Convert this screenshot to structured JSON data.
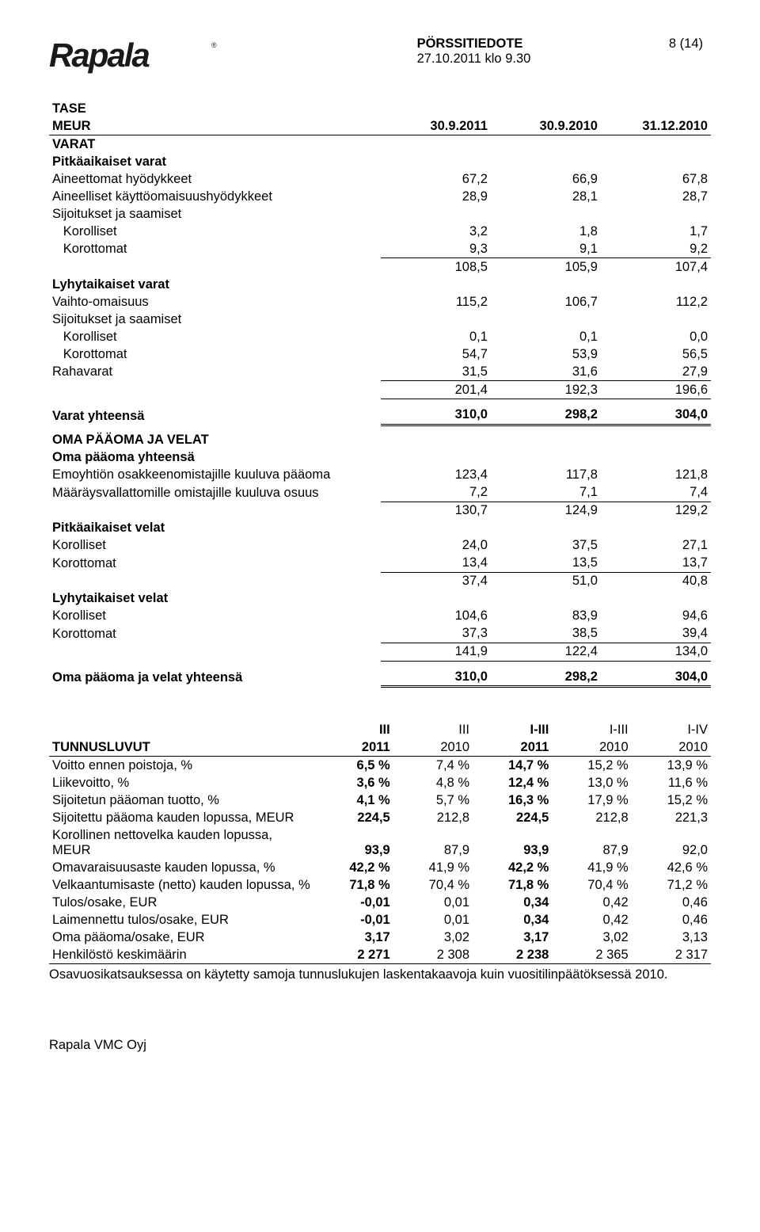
{
  "header": {
    "title": "PÖRSSITIEDOTE",
    "page": "8 (14)",
    "date": "27.10.2011 klo 9.30"
  },
  "tase": {
    "title": "TASE",
    "meur": "MEUR",
    "cols": [
      "30.9.2011",
      "30.9.2010",
      "31.12.2010"
    ],
    "varat": "VARAT",
    "pitk_varat": "Pitkäaikaiset varat",
    "rows1": [
      {
        "l": "Aineettomat hyödykkeet",
        "v": [
          "67,2",
          "66,9",
          "67,8"
        ]
      },
      {
        "l": "Aineelliset käyttöomaisuushyödykkeet",
        "v": [
          "28,9",
          "28,1",
          "28,7"
        ]
      }
    ],
    "sij_saa": "Sijoitukset ja saamiset",
    "rows2": [
      {
        "l": "  Korolliset",
        "v": [
          "3,2",
          "1,8",
          "1,7"
        ]
      },
      {
        "l": "  Korottomat",
        "v": [
          "9,3",
          "9,1",
          "9,2"
        ]
      }
    ],
    "sub1": [
      "108,5",
      "105,9",
      "107,4"
    ],
    "lyh_varat": "Lyhytaikaiset varat",
    "rows3": [
      {
        "l": "Vaihto-omaisuus",
        "v": [
          "115,2",
          "106,7",
          "112,2"
        ]
      }
    ],
    "sij_saa2": "Sijoitukset ja saamiset",
    "rows4": [
      {
        "l": "  Korolliset",
        "v": [
          "0,1",
          "0,1",
          "0,0"
        ]
      },
      {
        "l": "  Korottomat",
        "v": [
          "54,7",
          "53,9",
          "56,5"
        ]
      },
      {
        "l": "Rahavarat",
        "v": [
          "31,5",
          "31,6",
          "27,9"
        ]
      }
    ],
    "sub2": [
      "201,4",
      "192,3",
      "196,6"
    ],
    "varat_yht": {
      "l": "Varat yhteensä",
      "v": [
        "310,0",
        "298,2",
        "304,0"
      ]
    },
    "oma_velat": "OMA PÄÄOMA JA VELAT",
    "oma_yht": "Oma pääoma yhteensä",
    "rows5": [
      {
        "l": "Emoyhtiön osakkeenomistajille kuuluva pääoma",
        "v": [
          "123,4",
          "117,8",
          "121,8"
        ]
      },
      {
        "l": "Määräysvallattomille omistajille kuuluva osuus",
        "v": [
          "7,2",
          "7,1",
          "7,4"
        ]
      }
    ],
    "sub3": [
      "130,7",
      "124,9",
      "129,2"
    ],
    "pitk_velat": "Pitkäaikaiset velat",
    "rows6": [
      {
        "l": "Korolliset",
        "v": [
          "24,0",
          "37,5",
          "27,1"
        ]
      },
      {
        "l": "Korottomat",
        "v": [
          "13,4",
          "13,5",
          "13,7"
        ]
      }
    ],
    "sub4": [
      "37,4",
      "51,0",
      "40,8"
    ],
    "lyh_velat": "Lyhytaikaiset velat",
    "rows7": [
      {
        "l": "Korolliset",
        "v": [
          "104,6",
          "83,9",
          "94,6"
        ]
      },
      {
        "l": "Korottomat",
        "v": [
          "37,3",
          "38,5",
          "39,4"
        ]
      }
    ],
    "sub5": [
      "141,9",
      "122,4",
      "134,0"
    ],
    "oma_velat_yht": {
      "l": "Oma pääoma ja velat yhteensä",
      "v": [
        "310,0",
        "298,2",
        "304,0"
      ]
    }
  },
  "tunnus": {
    "title": "TUNNUSLUVUT",
    "h1": [
      "III",
      "III",
      "I-III",
      "I-III",
      "I-IV"
    ],
    "h2": [
      "2011",
      "2010",
      "2011",
      "2010",
      "2010"
    ],
    "rows": [
      {
        "l": "Voitto ennen poistoja, %",
        "v": [
          "6,5 %",
          "7,4 %",
          "14,7 %",
          "15,2 %",
          "13,9 %"
        ]
      },
      {
        "l": "Liikevoitto, %",
        "v": [
          "3,6 %",
          "4,8 %",
          "12,4 %",
          "13,0 %",
          "11,6 %"
        ]
      },
      {
        "l": "Sijoitetun pääoman tuotto, %",
        "v": [
          "4,1 %",
          "5,7 %",
          "16,3 %",
          "17,9 %",
          "15,2 %"
        ]
      },
      {
        "l": "Sijoitettu pääoma kauden lopussa, MEUR",
        "v": [
          "224,5",
          "212,8",
          "224,5",
          "212,8",
          "221,3"
        ]
      },
      {
        "l": "Korollinen nettovelka kauden lopussa, MEUR",
        "v": [
          "93,9",
          "87,9",
          "93,9",
          "87,9",
          "92,0"
        ]
      },
      {
        "l": "Omavaraisuusaste kauden lopussa, %",
        "v": [
          "42,2 %",
          "41,9 %",
          "42,2 %",
          "41,9 %",
          "42,6 %"
        ]
      },
      {
        "l": "Velkaantumisaste (netto) kauden lopussa, %",
        "v": [
          "71,8 %",
          "70,4 %",
          "71,8 %",
          "70,4 %",
          "71,2 %"
        ]
      },
      {
        "l": "Tulos/osake, EUR",
        "v": [
          "-0,01",
          "0,01",
          "0,34",
          "0,42",
          "0,46"
        ]
      },
      {
        "l": "Laimennettu tulos/osake, EUR",
        "v": [
          "-0,01",
          "0,01",
          "0,34",
          "0,42",
          "0,46"
        ]
      },
      {
        "l": "Oma pääoma/osake, EUR",
        "v": [
          "3,17",
          "3,02",
          "3,17",
          "3,02",
          "3,13"
        ]
      },
      {
        "l": "Henkilöstö keskimäärin",
        "v": [
          "2 271",
          "2 308",
          "2 238",
          "2 365",
          "2 317"
        ]
      }
    ],
    "bold_cols": [
      0,
      2
    ]
  },
  "note": "Osavuosikatsauksessa on käytetty samoja tunnuslukujen laskentakaavoja kuin vuositilinpäätöksessä 2010.",
  "footer": "Rapala VMC Oyj"
}
